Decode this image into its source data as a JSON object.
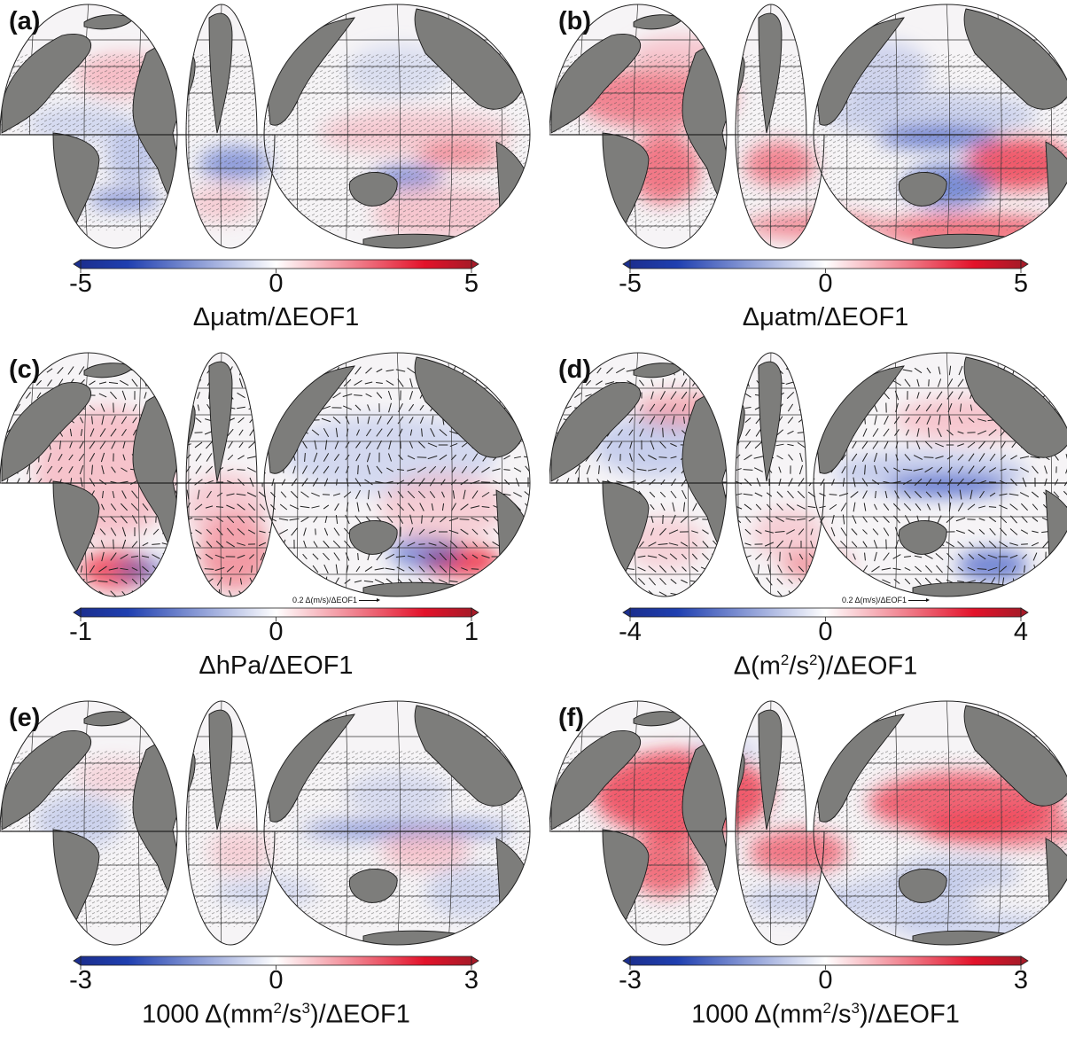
{
  "panels": [
    {
      "label": "(a)",
      "ticks": [
        "-5",
        "0",
        "5"
      ],
      "unit_main": "Δμatm/ΔEOF1",
      "unit_sup": [],
      "vector_ref": "",
      "pattern": "a",
      "stipple": true
    },
    {
      "label": "(b)",
      "ticks": [
        "-5",
        "0",
        "5"
      ],
      "unit_main": "Δμatm/ΔEOF1",
      "unit_sup": [],
      "vector_ref": "",
      "pattern": "b",
      "stipple": true
    },
    {
      "label": "(c)",
      "ticks": [
        "-1",
        "0",
        "1"
      ],
      "unit_main": "ΔhPa/ΔEOF1",
      "unit_sup": [],
      "vector_ref": "0.2 Δ(m/s)/ΔEOF1",
      "pattern": "c",
      "stipple": false
    },
    {
      "label": "(d)",
      "ticks": [
        "-4",
        "0",
        "4"
      ],
      "unit_pre": "Δ(m",
      "unit_sup": [
        "2",
        "2"
      ],
      "unit_mid": "/s",
      "unit_post": ")/ΔEOF1",
      "vector_ref": "0.2 Δ(m/s)/ΔEOF1",
      "pattern": "d",
      "stipple": false
    },
    {
      "label": "(e)",
      "ticks": [
        "-3",
        "0",
        "3"
      ],
      "unit_pre": "1000 Δ(mm",
      "unit_sup": [
        "2",
        "3"
      ],
      "unit_mid": "/s",
      "unit_post": ")/ΔEOF1",
      "vector_ref": "",
      "pattern": "e",
      "stipple": true
    },
    {
      "label": "(f)",
      "ticks": [
        "-3",
        "0",
        "3"
      ],
      "unit_pre": "1000 Δ(mm",
      "unit_sup": [
        "2",
        "3"
      ],
      "unit_mid": "/s",
      "unit_post": ")/ΔEOF1",
      "vector_ref": "",
      "pattern": "f",
      "stipple": true
    }
  ],
  "colors": {
    "land": "#7d7d7b",
    "coast": "#1a1a1a",
    "cb_neg": "#1f3fb0",
    "cb_mid": "#ffffff",
    "cb_pos": "#e3122a"
  }
}
